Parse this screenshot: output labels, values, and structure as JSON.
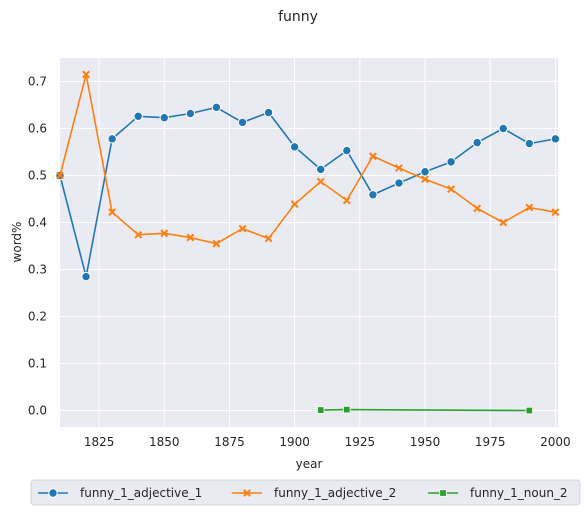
{
  "chart_data": {
    "type": "line",
    "title": "funny",
    "xlabel": "year",
    "ylabel": "word%",
    "xlim": [
      1810,
      2001
    ],
    "ylim": [
      -0.035,
      0.75
    ],
    "xticks": [
      1825,
      1850,
      1875,
      1900,
      1925,
      1950,
      1975,
      2000
    ],
    "yticks": [
      0.0,
      0.1,
      0.2,
      0.3,
      0.4,
      0.5,
      0.6,
      0.7
    ],
    "grid": true,
    "legend_position": "bottom",
    "series": [
      {
        "name": "funny_1_adjective_1",
        "color": "#1f77b4",
        "marker": "circle",
        "x": [
          1810,
          1820,
          1830,
          1840,
          1850,
          1860,
          1870,
          1880,
          1890,
          1900,
          1910,
          1920,
          1930,
          1940,
          1950,
          1960,
          1970,
          1980,
          1990,
          2000
        ],
        "y": [
          0.5,
          0.285,
          0.578,
          0.626,
          0.623,
          0.632,
          0.645,
          0.613,
          0.634,
          0.561,
          0.513,
          0.553,
          0.459,
          0.484,
          0.508,
          0.529,
          0.57,
          0.6,
          0.568,
          0.578
        ]
      },
      {
        "name": "funny_1_adjective_2",
        "color": "#ff7f0e",
        "marker": "x",
        "x": [
          1810,
          1820,
          1830,
          1840,
          1850,
          1860,
          1870,
          1880,
          1890,
          1900,
          1910,
          1920,
          1930,
          1940,
          1950,
          1960,
          1970,
          1980,
          1990,
          2000
        ],
        "y": [
          0.5,
          0.715,
          0.422,
          0.374,
          0.377,
          0.368,
          0.355,
          0.387,
          0.366,
          0.439,
          0.487,
          0.447,
          0.541,
          0.516,
          0.492,
          0.471,
          0.43,
          0.4,
          0.432,
          0.422
        ]
      },
      {
        "name": "funny_1_noun_2",
        "color": "#2ca02c",
        "marker": "square",
        "x": [
          1910,
          1920,
          1990
        ],
        "y": [
          0.001,
          0.002,
          0.0
        ]
      }
    ]
  }
}
